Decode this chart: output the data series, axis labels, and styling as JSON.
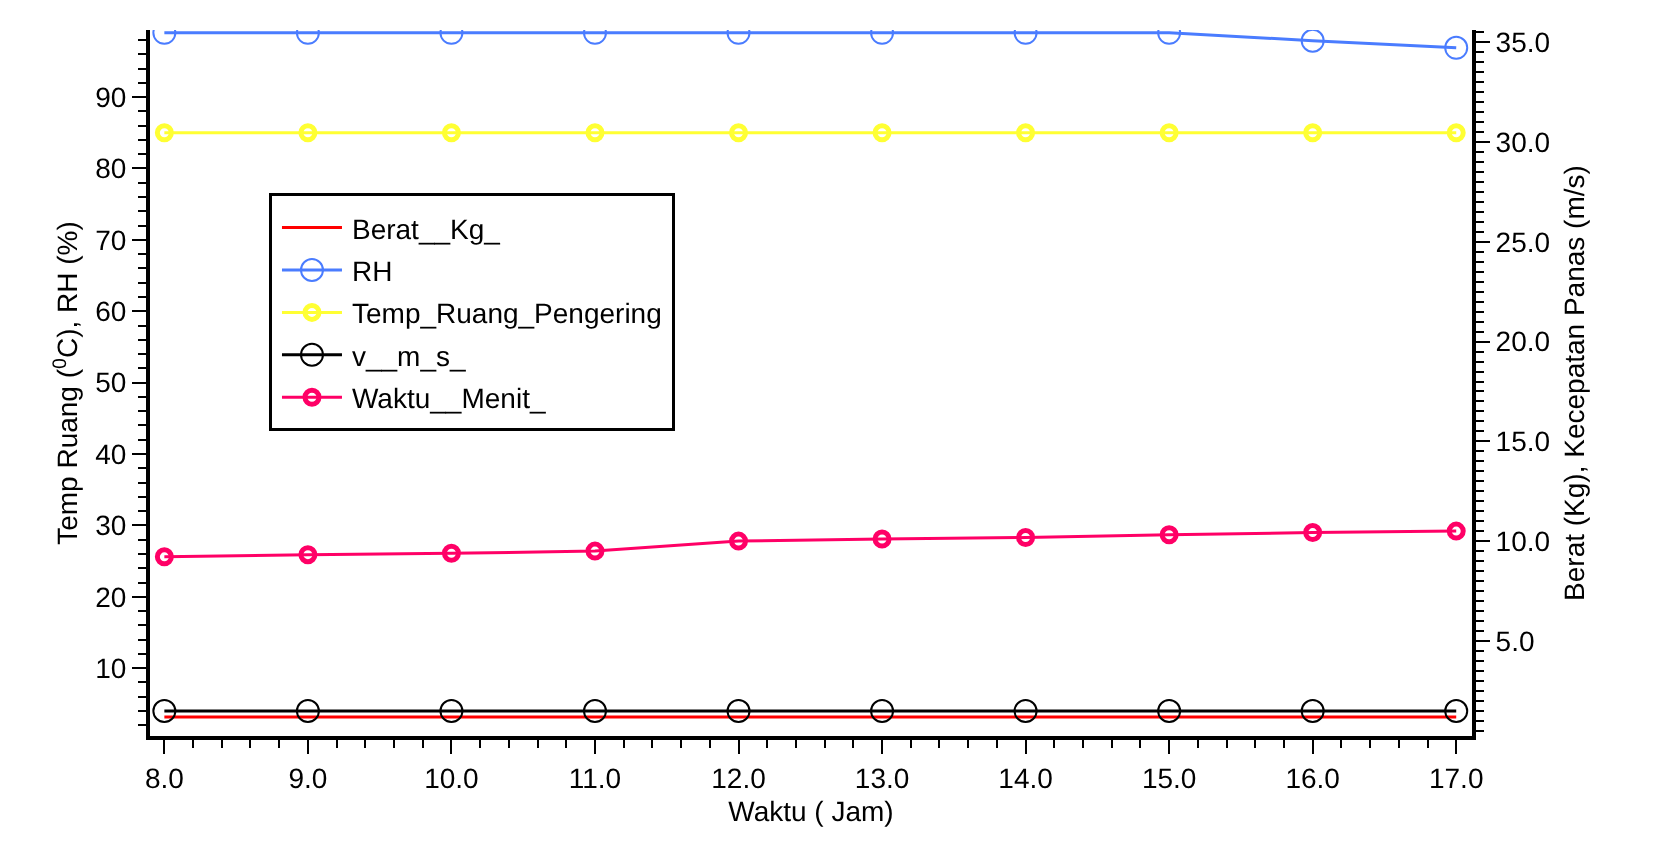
{
  "chart_data": {
    "type": "line",
    "xlabel": "Waktu ( Jam)",
    "ylabel": "Temp Ruang ($^{0}$C), RH (%)",
    "y2label": "Berat (Kg), Kecepatan Panas (m/s)",
    "x": [
      8,
      9,
      10,
      11,
      12,
      13,
      14,
      15,
      16,
      17
    ],
    "xlim": [
      7.9,
      17.11
    ],
    "xticks": [
      {
        "value": 8,
        "label": "8.0"
      },
      {
        "value": 9,
        "label": "9.0"
      },
      {
        "value": 10,
        "label": "10.0"
      },
      {
        "value": 11,
        "label": "11.0"
      },
      {
        "value": 12,
        "label": "12.0"
      },
      {
        "value": 13,
        "label": "13.0"
      },
      {
        "value": 14,
        "label": "14.0"
      },
      {
        "value": 15,
        "label": "15.0"
      },
      {
        "value": 16,
        "label": "16.0"
      },
      {
        "value": 17,
        "label": "17.0"
      }
    ],
    "ylim": [
      0.5,
      99.4
    ],
    "yticks": [
      10,
      20,
      30,
      40,
      50,
      60,
      70,
      80,
      90
    ],
    "y2lim": [
      0.25,
      35.6
    ],
    "y2ticks": [
      {
        "value": 5,
        "label": "5.0"
      },
      {
        "value": 10,
        "label": "10.0"
      },
      {
        "value": 15,
        "label": "15.0"
      },
      {
        "value": 20,
        "label": "20.0"
      },
      {
        "value": 25,
        "label": "25.0"
      },
      {
        "value": 30,
        "label": "30.0"
      },
      {
        "value": 35,
        "label": "35.0"
      }
    ],
    "legend": "left",
    "line_style": "solid",
    "series": [
      {
        "name": "Berat__Kg_",
        "color": "#ff0000",
        "axis": "y2",
        "marker": "none",
        "values": [
          1.2,
          1.2,
          1.2,
          1.2,
          1.2,
          1.2,
          1.2,
          1.2,
          1.2,
          1.2
        ]
      },
      {
        "name": "RH",
        "color": "#4a7cff",
        "marker": "circle",
        "values": [
          99.0,
          99.0,
          99.0,
          99.0,
          99.0,
          99.0,
          99.0,
          99.0,
          97.9,
          96.9
        ]
      },
      {
        "name": "Temp_Ruang_Pengering",
        "color": "#ffff33",
        "marker": "circle",
        "values": [
          85,
          85,
          85,
          85,
          85,
          85,
          85,
          85,
          85,
          85
        ]
      },
      {
        "name": "v__m_s_",
        "color": "#000000",
        "axis": "y2",
        "marker": "circle",
        "values": [
          1.5,
          1.5,
          1.5,
          1.5,
          1.5,
          1.5,
          1.5,
          1.5,
          1.5,
          1.5
        ]
      },
      {
        "name": "Waktu__Menit_",
        "color": "#ff0066",
        "marker": "circle",
        "values": [
          25.6,
          25.9,
          26.1,
          26.4,
          27.8,
          28.1,
          28.3,
          28.7,
          29.0,
          29.2
        ]
      }
    ]
  }
}
